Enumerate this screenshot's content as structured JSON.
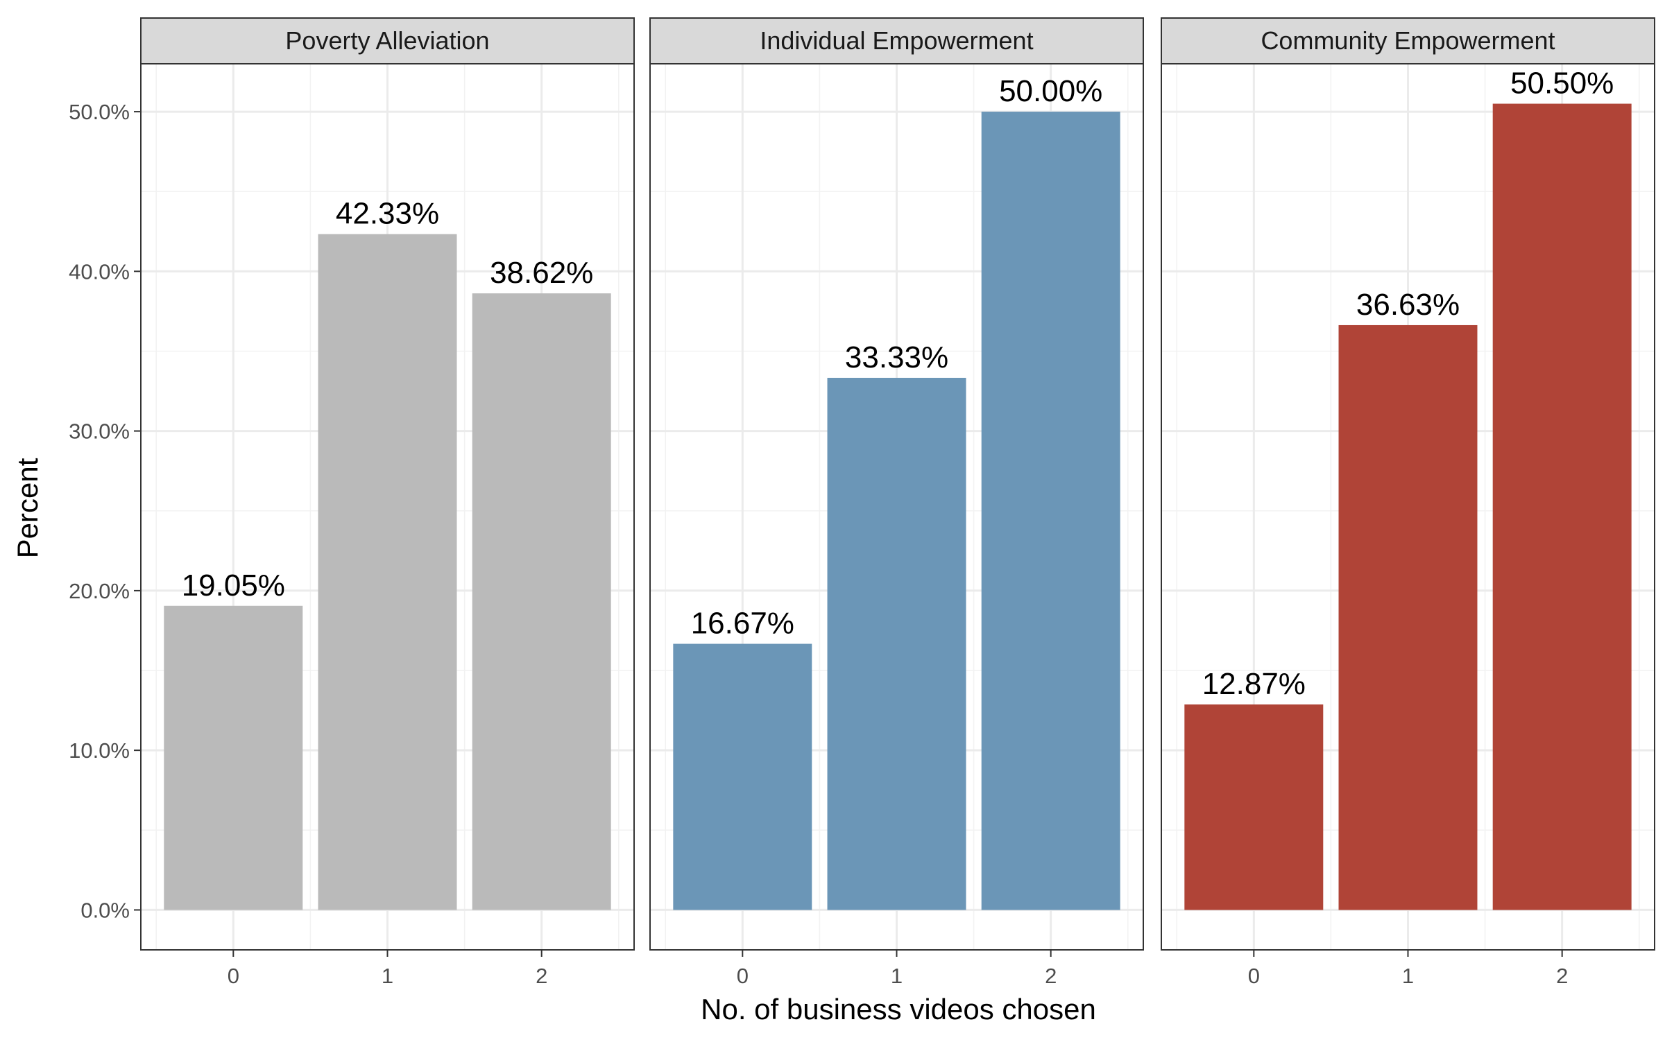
{
  "chart_data": {
    "type": "bar",
    "facets": [
      {
        "name": "Poverty Alleviation",
        "color": "#bababa",
        "categories": [
          "0",
          "1",
          "2"
        ],
        "values": [
          19.05,
          42.33,
          38.62
        ],
        "labels": [
          "19.05%",
          "42.33%",
          "38.62%"
        ]
      },
      {
        "name": "Individual Empowerment",
        "color": "#6b96b7",
        "categories": [
          "0",
          "1",
          "2"
        ],
        "values": [
          16.67,
          33.33,
          50.0
        ],
        "labels": [
          "16.67%",
          "33.33%",
          "50.00%"
        ]
      },
      {
        "name": "Community Empowerment",
        "color": "#b04437",
        "categories": [
          "0",
          "1",
          "2"
        ],
        "values": [
          12.87,
          36.63,
          50.5
        ],
        "labels": [
          "12.87%",
          "36.63%",
          "50.50%"
        ]
      }
    ],
    "xlabel": "No. of business videos chosen",
    "ylabel": "Percent",
    "y_ticks": [
      0,
      10,
      20,
      30,
      40,
      50
    ],
    "y_tick_labels": [
      "0.0%",
      "10.0%",
      "20.0%",
      "30.0%",
      "40.0%",
      "50.0%"
    ],
    "ylim": [
      -2.5,
      53
    ],
    "grid": true,
    "theme": "bw",
    "strip_color": "#d9d9d9",
    "border_color": "#333333"
  }
}
